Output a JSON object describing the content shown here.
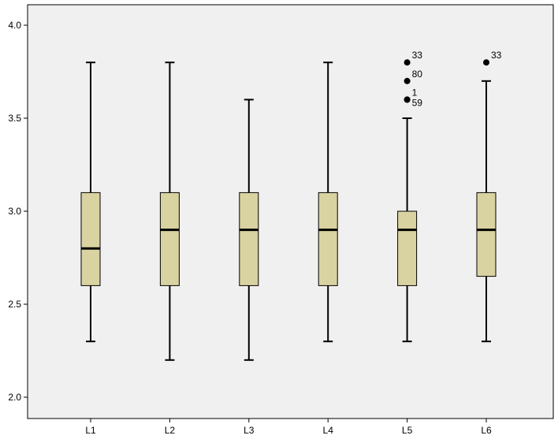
{
  "chart_data": {
    "type": "boxplot",
    "title": "",
    "xlabel": "",
    "ylabel": "",
    "ylim": [
      2.0,
      4.0
    ],
    "y_ticks": [
      "2.0",
      "2.5",
      "3.0",
      "3.5",
      "4.0"
    ],
    "grid": false,
    "colors": {
      "plot_background": "#f0f0f0",
      "box_fill": "#d8d3a0",
      "stroke": "#000000",
      "page_background": "#ffffff"
    },
    "categories": [
      "L1",
      "L2",
      "L3",
      "L4",
      "L5",
      "L6"
    ],
    "boxes": [
      {
        "category": "L1",
        "whisker_low": 2.3,
        "q1": 2.6,
        "median": 2.8,
        "q3": 3.1,
        "whisker_high": 3.8,
        "outliers": []
      },
      {
        "category": "L2",
        "whisker_low": 2.2,
        "q1": 2.6,
        "median": 2.9,
        "q3": 3.1,
        "whisker_high": 3.8,
        "outliers": []
      },
      {
        "category": "L3",
        "whisker_low": 2.2,
        "q1": 2.6,
        "median": 2.9,
        "q3": 3.1,
        "whisker_high": 3.6,
        "outliers": []
      },
      {
        "category": "L4",
        "whisker_low": 2.3,
        "q1": 2.6,
        "median": 2.9,
        "q3": 3.1,
        "whisker_high": 3.8,
        "outliers": []
      },
      {
        "category": "L5",
        "whisker_low": 2.3,
        "q1": 2.6,
        "median": 2.9,
        "q3": 3.0,
        "whisker_high": 3.5,
        "outliers": [
          {
            "value": 3.8,
            "label": "33"
          },
          {
            "value": 3.7,
            "label": "80"
          },
          {
            "value": 3.6,
            "label": "1"
          },
          {
            "value": 3.6,
            "label": "59"
          }
        ]
      },
      {
        "category": "L6",
        "whisker_low": 2.3,
        "q1": 2.65,
        "median": 2.9,
        "q3": 3.1,
        "whisker_high": 3.7,
        "outliers": [
          {
            "value": 3.8,
            "label": "33"
          }
        ]
      }
    ]
  }
}
